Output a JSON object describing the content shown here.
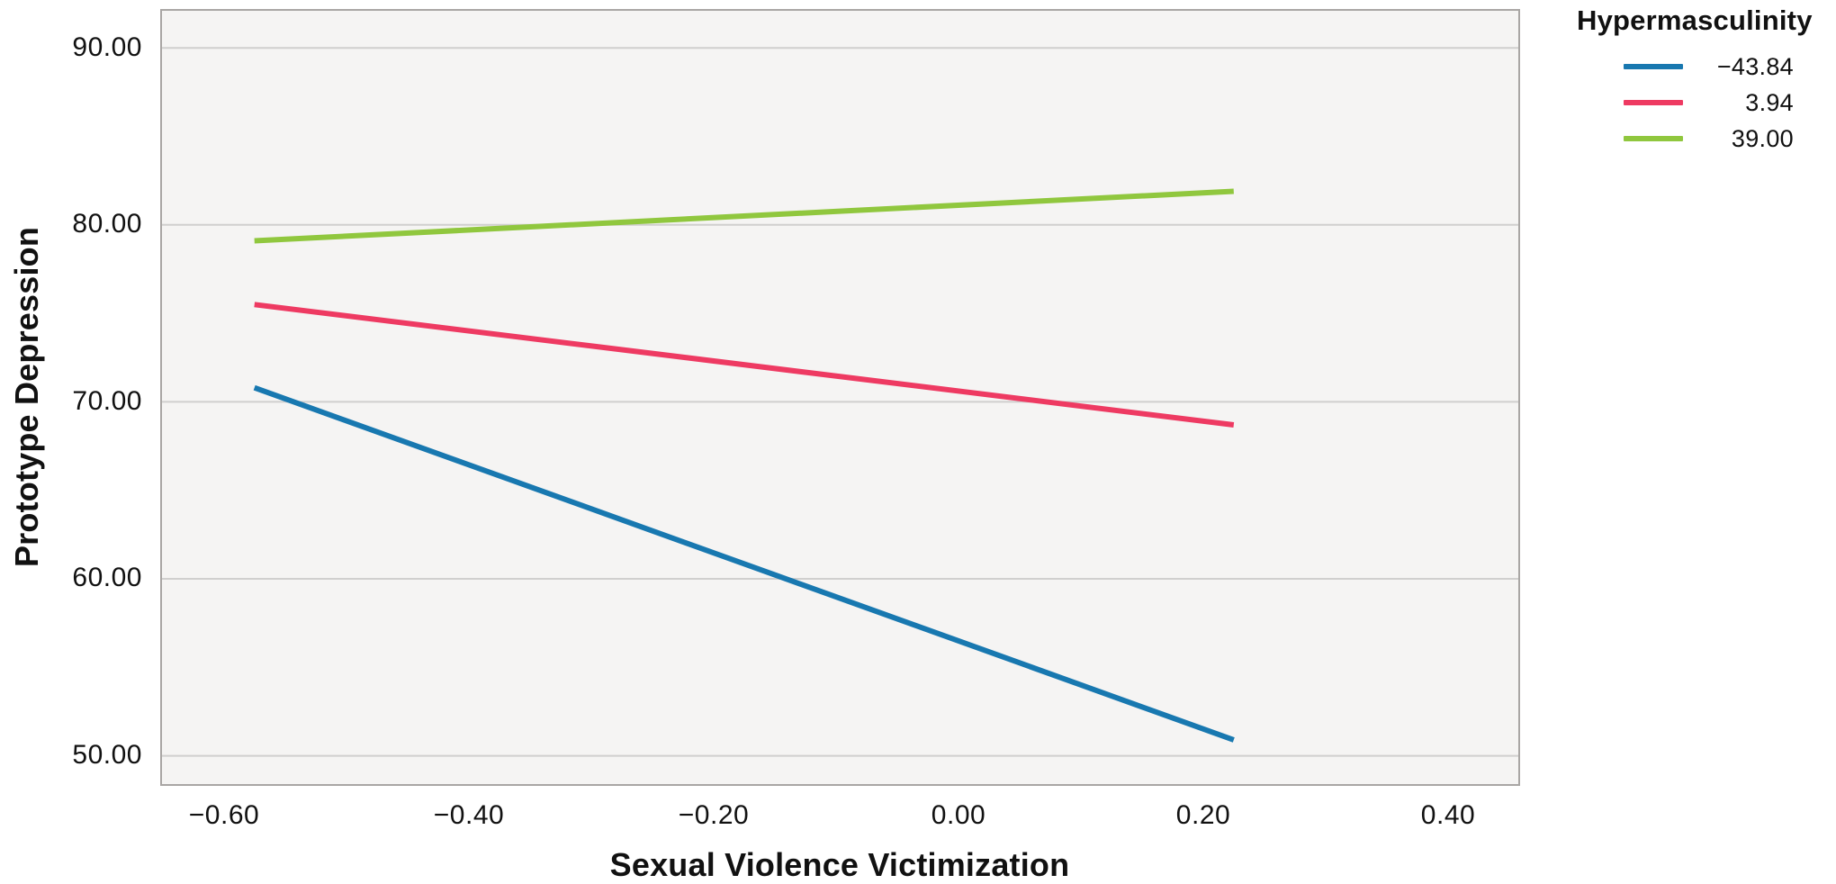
{
  "chart_data": {
    "type": "line",
    "title": "",
    "xlabel": "Sexual Violence Victimization",
    "ylabel": "Prototype Depression",
    "legend_title": "Hypermasculinity",
    "legend_position": "outside-top-right",
    "grid": "horizontal",
    "x_tick_labels": [
      "−0.60",
      "−0.40",
      "−0.20",
      "0.00",
      "0.20",
      "0.40"
    ],
    "x_tick_values": [
      -0.6,
      -0.4,
      -0.2,
      0.0,
      0.2,
      0.4
    ],
    "y_tick_labels": [
      "90.00",
      "80.00",
      "70.00",
      "60.00",
      "50.00"
    ],
    "y_tick_values": [
      90,
      80,
      70,
      60,
      50
    ],
    "xlim": [
      -0.652,
      0.459
    ],
    "ylim": [
      48.3,
      92.2
    ],
    "x": [
      -0.575,
      0.225
    ],
    "series": [
      {
        "name": "−43.84",
        "color": "#1878b0",
        "values": [
          70.8,
          50.9
        ]
      },
      {
        "name": "3.94",
        "color": "#ee3a62",
        "values": [
          75.5,
          68.7
        ]
      },
      {
        "name": "39.00",
        "color": "#90c73e",
        "values": [
          79.1,
          81.9
        ]
      }
    ],
    "colors": {
      "plot_bg": "#f5f4f3",
      "grid": "#d0cfce",
      "border": "#a9a6a4",
      "text": "#111111"
    }
  }
}
